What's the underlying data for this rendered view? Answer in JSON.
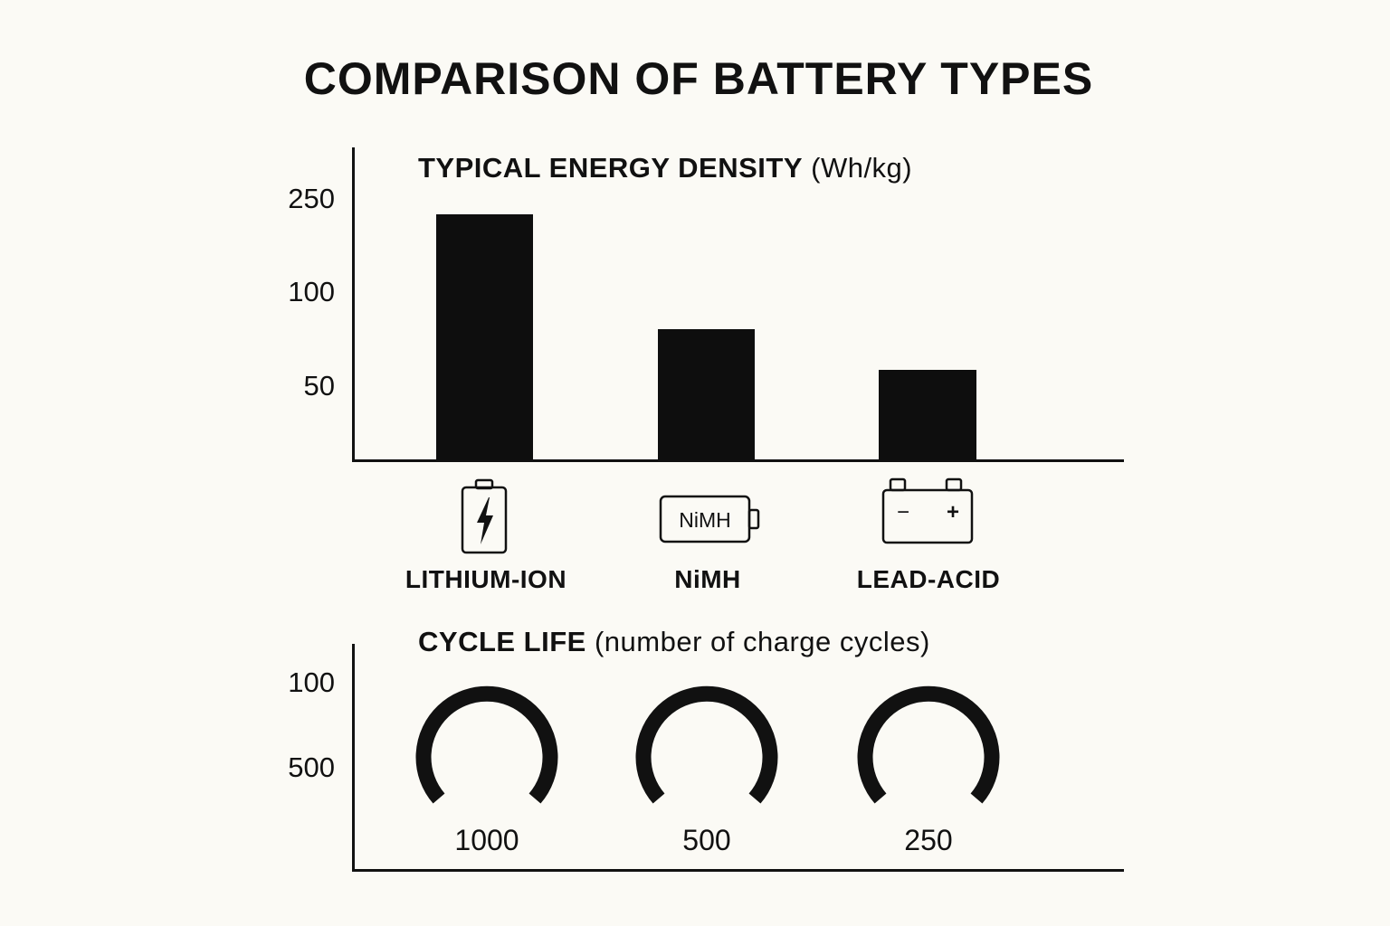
{
  "title": "COMPARISON OF BATTERY TYPES",
  "energy_chart": {
    "title": "TYPICAL ENERGY DENSITY",
    "unit": "(Wh/kg)",
    "y_ticks": [
      "250",
      "100",
      "50"
    ],
    "categories": [
      {
        "label": "LITHIUM-ION",
        "icon": "lightning-battery-icon"
      },
      {
        "label": "NiMH",
        "icon": "nimh-battery-icon",
        "icon_text": "NiMH"
      },
      {
        "label": "LEAD-ACID",
        "icon": "lead-acid-battery-icon",
        "minus": "−",
        "plus": "+"
      }
    ]
  },
  "cycle_chart": {
    "title": "CYCLE LIFE",
    "unit": "(number of charge cycles)",
    "y_ticks": [
      "100",
      "500"
    ],
    "values": [
      "1000",
      "500",
      "250"
    ]
  },
  "chart_data": [
    {
      "type": "bar",
      "title": "TYPICAL ENERGY DENSITY (Wh/kg)",
      "categories": [
        "LITHIUM-ION",
        "NiMH",
        "LEAD-ACID"
      ],
      "values": [
        150,
        80,
        55
      ],
      "y_tick_labels": [
        "250",
        "100",
        "50"
      ],
      "grid": false
    },
    {
      "type": "gauge",
      "title": "CYCLE LIFE (number of charge cycles)",
      "categories": [
        "LITHIUM-ION",
        "NiMH",
        "LEAD-ACID"
      ],
      "values": [
        1000,
        500,
        250
      ],
      "y_tick_labels": [
        "100",
        "500"
      ],
      "grid": false
    }
  ]
}
